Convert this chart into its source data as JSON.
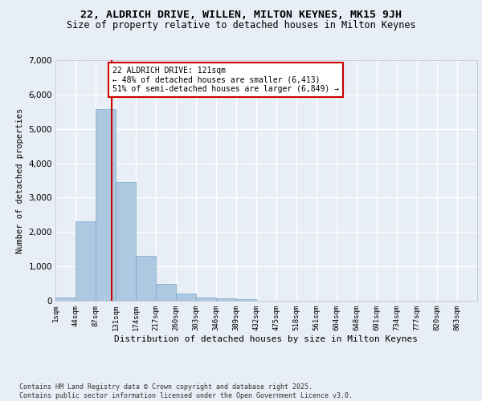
{
  "title_line1": "22, ALDRICH DRIVE, WILLEN, MILTON KEYNES, MK15 9JH",
  "title_line2": "Size of property relative to detached houses in Milton Keynes",
  "xlabel": "Distribution of detached houses by size in Milton Keynes",
  "ylabel": "Number of detached properties",
  "bar_color": "#adc8e0",
  "bar_edge_color": "#7aaac8",
  "background_color": "#e8eef5",
  "grid_color": "#ffffff",
  "vline_x": 121,
  "vline_color": "#cc0000",
  "annotation_text": "22 ALDRICH DRIVE: 121sqm\n← 48% of detached houses are smaller (6,413)\n51% of semi-detached houses are larger (6,849) →",
  "annotation_box_color": "#ffffff",
  "annotation_box_edge": "#cc0000",
  "bins_start": [
    1,
    44,
    87,
    131,
    174,
    217,
    260,
    303,
    346,
    389,
    432,
    475,
    518,
    561,
    604,
    648,
    691,
    734,
    777,
    820
  ],
  "bin_width": 43,
  "bar_heights": [
    100,
    2300,
    5580,
    3450,
    1300,
    500,
    200,
    100,
    70,
    50,
    0,
    0,
    0,
    0,
    0,
    0,
    0,
    0,
    0,
    0
  ],
  "ylim": [
    0,
    7000
  ],
  "yticks": [
    0,
    1000,
    2000,
    3000,
    4000,
    5000,
    6000,
    7000
  ],
  "tick_labels": [
    "1sqm",
    "44sqm",
    "87sqm",
    "131sqm",
    "174sqm",
    "217sqm",
    "260sqm",
    "303sqm",
    "346sqm",
    "389sqm",
    "432sqm",
    "475sqm",
    "518sqm",
    "561sqm",
    "604sqm",
    "648sqm",
    "691sqm",
    "734sqm",
    "777sqm",
    "820sqm",
    "863sqm"
  ],
  "footer_text": "Contains HM Land Registry data © Crown copyright and database right 2025.\nContains public sector information licensed under the Open Government Licence v3.0.",
  "font_family": "DejaVu Sans Mono"
}
